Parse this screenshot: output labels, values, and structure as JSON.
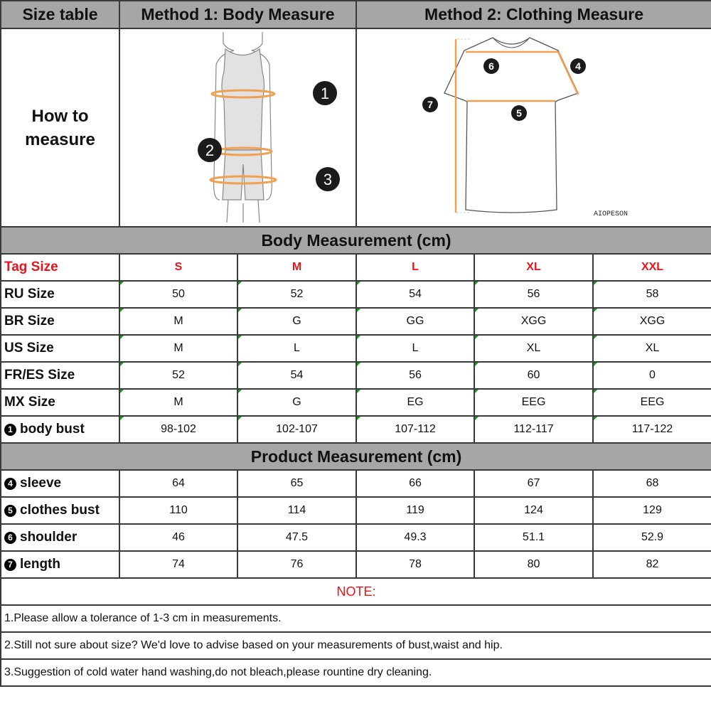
{
  "header": {
    "size_table": "Size table",
    "method1": "Method 1: Body  Measure",
    "method2": "Method 2: Clothing Measure"
  },
  "how_to_measure": [
    "How to",
    "measure"
  ],
  "illustration": {
    "body_markers": [
      "1",
      "2",
      "3"
    ],
    "shirt_markers": [
      "4",
      "5",
      "6",
      "7"
    ],
    "brand": "AIOPESON",
    "accent_color": "#f0a050"
  },
  "body_section": {
    "title": "Body Measurement (cm)",
    "tag_label": "Tag Size",
    "tag_sizes": [
      "S",
      "M",
      "L",
      "XL",
      "XXL"
    ],
    "rows": [
      {
        "marker": "",
        "label": "RU Size",
        "values": [
          "50",
          "52",
          "54",
          "56",
          "58"
        ]
      },
      {
        "marker": "",
        "label": "BR Size",
        "values": [
          "M",
          "G",
          "GG",
          "XGG",
          "XGG"
        ]
      },
      {
        "marker": "",
        "label": "US Size",
        "values": [
          "M",
          "L",
          "L",
          "XL",
          "XL"
        ]
      },
      {
        "marker": "",
        "label": "FR/ES Size",
        "values": [
          "52",
          "54",
          "56",
          "60",
          "0"
        ]
      },
      {
        "marker": "",
        "label": "MX Size",
        "values": [
          "M",
          "G",
          "EG",
          "EEG",
          "EEG"
        ]
      },
      {
        "marker": "1",
        "label": "body bust",
        "values": [
          "98-102",
          "102-107",
          "107-112",
          "112-117",
          "117-122"
        ]
      }
    ]
  },
  "product_section": {
    "title": "Product Measurement (cm)",
    "rows": [
      {
        "marker": "4",
        "label": "sleeve",
        "values": [
          "64",
          "65",
          "66",
          "67",
          "68"
        ]
      },
      {
        "marker": "5",
        "label": "clothes bust",
        "values": [
          "110",
          "114",
          "119",
          "124",
          "129"
        ]
      },
      {
        "marker": "6",
        "label": "shoulder",
        "values": [
          "46",
          "47.5",
          "49.3",
          "51.1",
          "52.9"
        ]
      },
      {
        "marker": "7",
        "label": "length",
        "values": [
          "74",
          "76",
          "78",
          "80",
          "82"
        ]
      }
    ]
  },
  "notes": {
    "title": "NOTE:",
    "lines": [
      "1.Please allow a tolerance of 1-3 cm in measurements.",
      "2.Still not sure about size? We'd love to advise based on your measurements of bust,waist and hip.",
      "3.Suggestion of cold water hand washing,do not bleach,please rountine dry cleaning."
    ]
  }
}
